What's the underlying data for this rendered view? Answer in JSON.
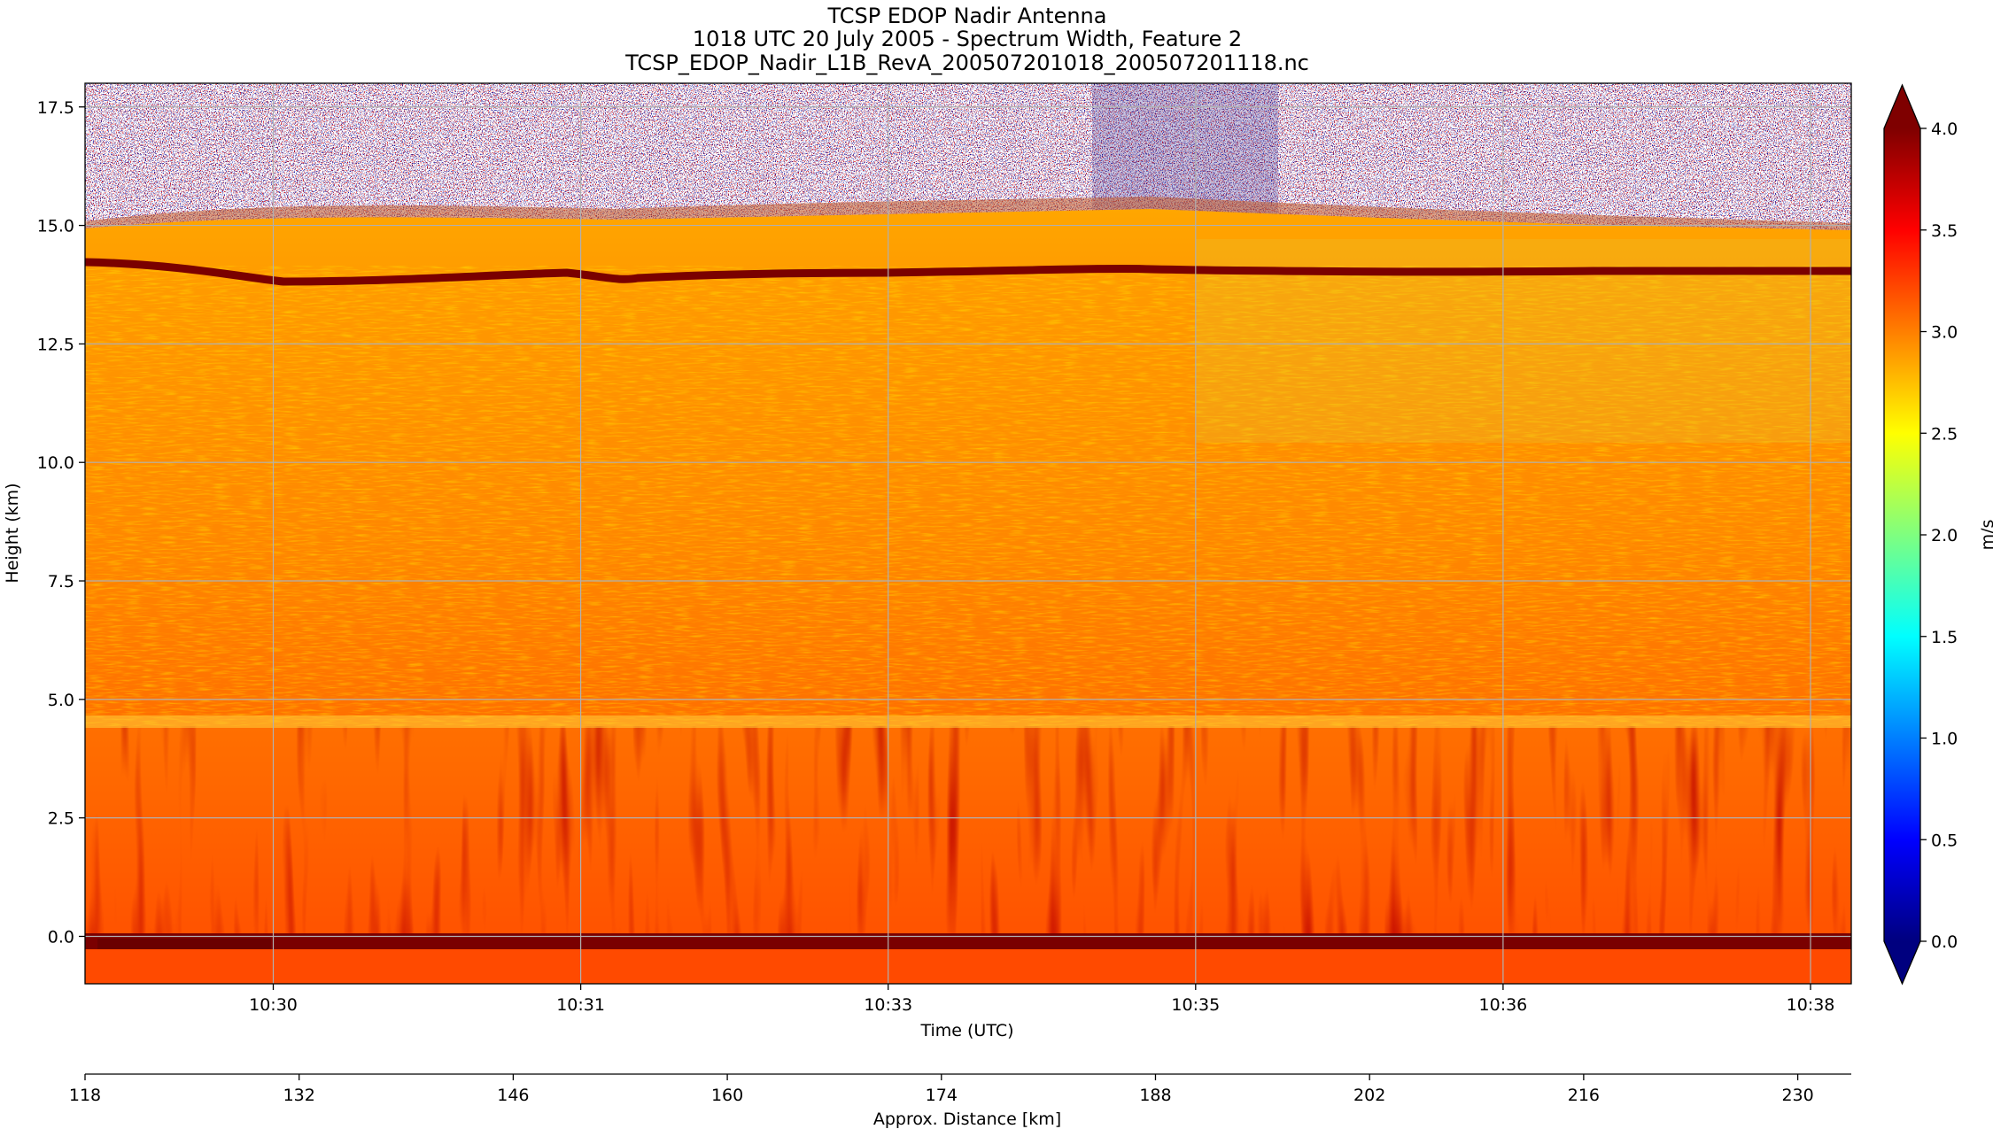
{
  "chart_data": {
    "type": "heatmap",
    "title_lines": [
      "TCSP EDOP Nadir Antenna",
      "1018 UTC 20 July 2005 - Spectrum Width, Feature 2",
      "TCSP_EDOP_Nadir_L1B_RevA_200507201018_200507201118.nc"
    ],
    "xlabel": "Time (UTC)",
    "ylabel": "Height (km)",
    "x_ticks": [
      "10:30",
      "10:31",
      "10:33",
      "10:35",
      "10:36",
      "10:38"
    ],
    "y_ticks": [
      "0.0",
      "2.5",
      "5.0",
      "7.5",
      "10.0",
      "12.5",
      "15.0",
      "17.5"
    ],
    "y_values": [
      0.0,
      2.5,
      5.0,
      7.5,
      10.0,
      12.5,
      15.0,
      17.5
    ],
    "ylim": [
      -1.0,
      18.0
    ],
    "grid": true,
    "distance_axis": {
      "label": "Approx. Distance [km]",
      "ticks": [
        "118",
        "132",
        "146",
        "160",
        "174",
        "188",
        "202",
        "216",
        "230"
      ],
      "values": [
        118,
        132,
        146,
        160,
        174,
        188,
        202,
        216,
        230
      ],
      "range": [
        118,
        233.5
      ]
    },
    "colorbar": {
      "label": "m/s",
      "vmin": 0.0,
      "vmax": 4.0,
      "extend": "both",
      "ticks": [
        "0.0",
        "0.5",
        "1.0",
        "1.5",
        "2.0",
        "2.5",
        "3.0",
        "3.5",
        "4.0"
      ],
      "tick_values": [
        0.0,
        0.5,
        1.0,
        1.5,
        2.0,
        2.5,
        3.0,
        3.5,
        4.0
      ],
      "colormap": "jet",
      "colors": [
        "#00007f",
        "#0000ff",
        "#007fff",
        "#00ffff",
        "#7fff7f",
        "#ffff00",
        "#ff7f00",
        "#ff0000",
        "#7f0000"
      ]
    },
    "features": [
      {
        "name": "noise above echo top",
        "height_min_km": 15.0,
        "height_max_km": 18.0
      },
      {
        "name": "dark band near echo top",
        "height_km": 14.0,
        "value": 4.0
      },
      {
        "name": "surface band",
        "height_km": -0.2,
        "value": 4.0
      },
      {
        "name": "bright band",
        "height_km": 4.8
      },
      {
        "name": "main echo",
        "height_min_km": -1.0,
        "height_max_km": 14.8,
        "typical_value": 3.3
      }
    ]
  }
}
